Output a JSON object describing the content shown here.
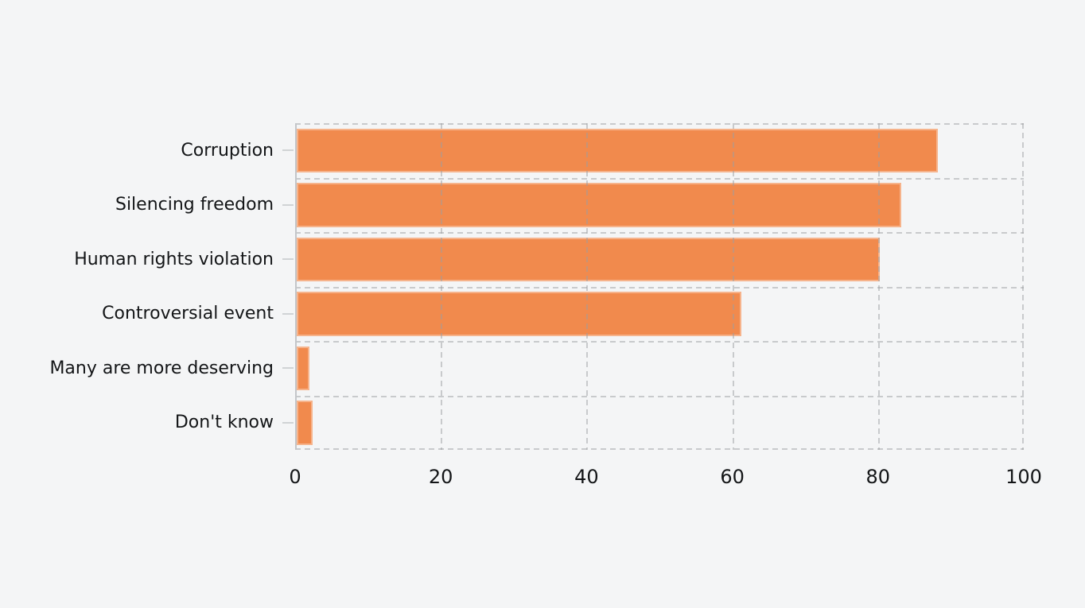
{
  "chart_data": {
    "type": "bar",
    "orientation": "horizontal",
    "title": "",
    "xlabel": "",
    "ylabel": "",
    "categories": [
      "Corruption",
      "Silencing freedom",
      "Human rights violation",
      "Controversial event",
      "Many are more deserving",
      "Don't know"
    ],
    "values": [
      88,
      83,
      80,
      61,
      1.7,
      2.2
    ],
    "xlim": [
      0,
      100
    ],
    "xticks": [
      0,
      20,
      40,
      60,
      80,
      100
    ],
    "grid": {
      "style": "dashed",
      "horizontal": true,
      "vertical": true,
      "drawn_over_bars": true
    },
    "legend": null,
    "colors": {
      "bar_fill": "#f18a4d",
      "bar_edge": "#f6b88e",
      "background": "#f4f5f6",
      "grid_line": "#9b9ea1",
      "axis_spine": "#c3c6c9",
      "tick_mark": "#d0d3d5",
      "text": "#131517"
    }
  }
}
